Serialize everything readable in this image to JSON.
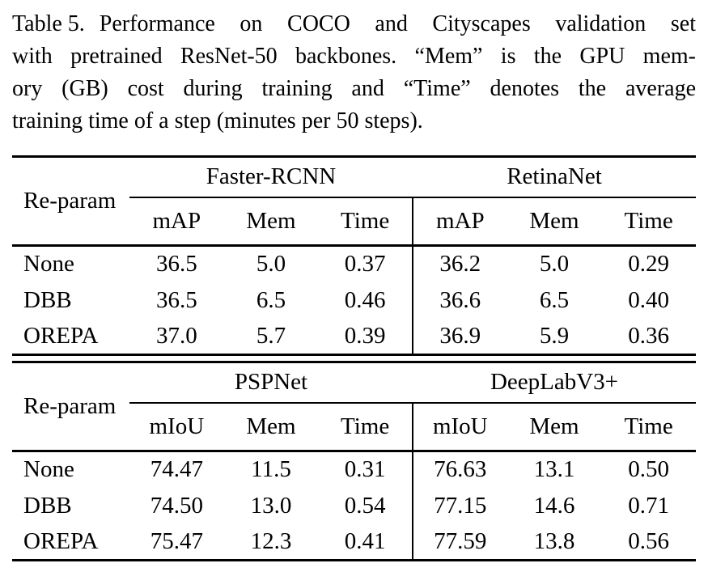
{
  "caption": {
    "label": "Table 5.",
    "lines": [
      "Performance on COCO and Cityscapes validation set",
      "with pretrained ResNet-50 backbones. “Mem” is the GPU mem-",
      "ory (GB) cost during training and “Time” denotes the average",
      "training time of a step (minutes per 50 steps)."
    ]
  },
  "colors": {
    "text": "#000000",
    "rule": "#000000",
    "background": "#ffffff"
  },
  "tables": [
    {
      "row_header": "Re-param",
      "groups": [
        {
          "label": "Faster-RCNN",
          "metrics": [
            "mAP",
            "Mem",
            "Time"
          ]
        },
        {
          "label": "RetinaNet",
          "metrics": [
            "mAP",
            "Mem",
            "Time"
          ]
        }
      ],
      "rows": [
        {
          "label": "None",
          "values": [
            "36.5",
            "5.0",
            "0.37",
            "36.2",
            "5.0",
            "0.29"
          ]
        },
        {
          "label": "DBB",
          "values": [
            "36.5",
            "6.5",
            "0.46",
            "36.6",
            "6.5",
            "0.40"
          ]
        },
        {
          "label": "OREPA",
          "values": [
            "37.0",
            "5.7",
            "0.39",
            "36.9",
            "5.9",
            "0.36"
          ]
        }
      ]
    },
    {
      "row_header": "Re-param",
      "groups": [
        {
          "label": "PSPNet",
          "metrics": [
            "mIoU",
            "Mem",
            "Time"
          ]
        },
        {
          "label": "DeepLabV3+",
          "metrics": [
            "mIoU",
            "Mem",
            "Time"
          ]
        }
      ],
      "rows": [
        {
          "label": "None",
          "values": [
            "74.47",
            "11.5",
            "0.31",
            "76.63",
            "13.1",
            "0.50"
          ]
        },
        {
          "label": "DBB",
          "values": [
            "74.50",
            "13.0",
            "0.54",
            "77.15",
            "14.6",
            "0.71"
          ]
        },
        {
          "label": "OREPA",
          "values": [
            "75.47",
            "12.3",
            "0.41",
            "77.59",
            "13.8",
            "0.56"
          ]
        }
      ]
    }
  ]
}
